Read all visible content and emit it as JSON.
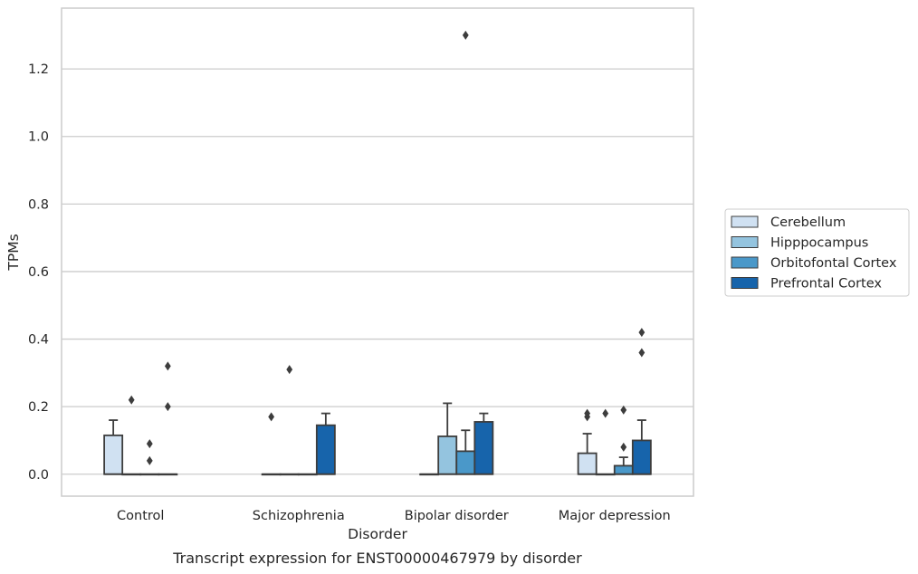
{
  "chart_data": {
    "type": "box",
    "title": "",
    "caption": "Transcript expression for ENST00000467979 by disorder",
    "xlabel": "Disorder",
    "ylabel": "TPMs",
    "ylim": [
      -0.065,
      1.38
    ],
    "yticks": [
      0.0,
      0.2,
      0.4,
      0.6,
      0.8,
      1.0,
      1.2
    ],
    "ytick_labels": [
      "0.0",
      "0.2",
      "0.4",
      "0.6",
      "0.8",
      "1.0",
      "1.2"
    ],
    "grid": "horizontal",
    "legend_position": "right",
    "categories": [
      "Control",
      "Schizophrenia",
      "Bipolar disorder",
      "Major depression"
    ],
    "series": [
      {
        "name": "Cerebellum",
        "color": "#d0e1f2",
        "boxes": [
          {
            "q1": 0.0,
            "median": 0.0,
            "q3": 0.115,
            "whisker_low": 0.0,
            "whisker_high": 0.16,
            "outliers": []
          },
          {
            "q1": 0.0,
            "median": 0.0,
            "q3": 0.0,
            "whisker_low": 0.0,
            "whisker_high": 0.0,
            "outliers": [
              0.17
            ]
          },
          {
            "q1": 0.0,
            "median": 0.0,
            "q3": 0.0,
            "whisker_low": 0.0,
            "whisker_high": 0.0,
            "outliers": []
          },
          {
            "q1": 0.0,
            "median": 0.0,
            "q3": 0.062,
            "whisker_low": 0.0,
            "whisker_high": 0.12,
            "outliers": [
              0.17,
              0.18
            ]
          }
        ]
      },
      {
        "name": "Hipppocampus",
        "color": "#94c4df",
        "boxes": [
          {
            "q1": 0.0,
            "median": 0.0,
            "q3": 0.0,
            "whisker_low": 0.0,
            "whisker_high": 0.0,
            "outliers": [
              0.22
            ]
          },
          {
            "q1": 0.0,
            "median": 0.0,
            "q3": 0.0,
            "whisker_low": 0.0,
            "whisker_high": 0.0,
            "outliers": [
              0.31
            ]
          },
          {
            "q1": 0.0,
            "median": 0.0,
            "q3": 0.112,
            "whisker_low": 0.0,
            "whisker_high": 0.21,
            "outliers": []
          },
          {
            "q1": 0.0,
            "median": 0.0,
            "q3": 0.0,
            "whisker_low": 0.0,
            "whisker_high": 0.0,
            "outliers": [
              0.18
            ]
          }
        ]
      },
      {
        "name": "Orbitofontal Cortex",
        "color": "#4a98c9",
        "boxes": [
          {
            "q1": 0.0,
            "median": 0.0,
            "q3": 0.0,
            "whisker_low": 0.0,
            "whisker_high": 0.0,
            "outliers": [
              0.04,
              0.09
            ]
          },
          {
            "q1": 0.0,
            "median": 0.0,
            "q3": 0.0,
            "whisker_low": 0.0,
            "whisker_high": 0.0,
            "outliers": []
          },
          {
            "q1": 0.0,
            "median": 0.0,
            "q3": 0.068,
            "whisker_low": 0.0,
            "whisker_high": 0.13,
            "outliers": [
              1.3
            ]
          },
          {
            "q1": 0.0,
            "median": 0.0,
            "q3": 0.025,
            "whisker_low": 0.0,
            "whisker_high": 0.05,
            "outliers": [
              0.08,
              0.19
            ]
          }
        ]
      },
      {
        "name": "Prefrontal Cortex",
        "color": "#1764ab",
        "boxes": [
          {
            "q1": 0.0,
            "median": 0.0,
            "q3": 0.0,
            "whisker_low": 0.0,
            "whisker_high": 0.0,
            "outliers": [
              0.2,
              0.32
            ]
          },
          {
            "q1": 0.0,
            "median": 0.0,
            "q3": 0.145,
            "whisker_low": 0.0,
            "whisker_high": 0.18,
            "outliers": []
          },
          {
            "q1": 0.0,
            "median": 0.0,
            "q3": 0.155,
            "whisker_low": 0.0,
            "whisker_high": 0.18,
            "outliers": []
          },
          {
            "q1": 0.0,
            "median": 0.0,
            "q3": 0.1,
            "whisker_low": 0.0,
            "whisker_high": 0.16,
            "outliers": [
              0.36,
              0.42
            ]
          }
        ]
      }
    ]
  }
}
